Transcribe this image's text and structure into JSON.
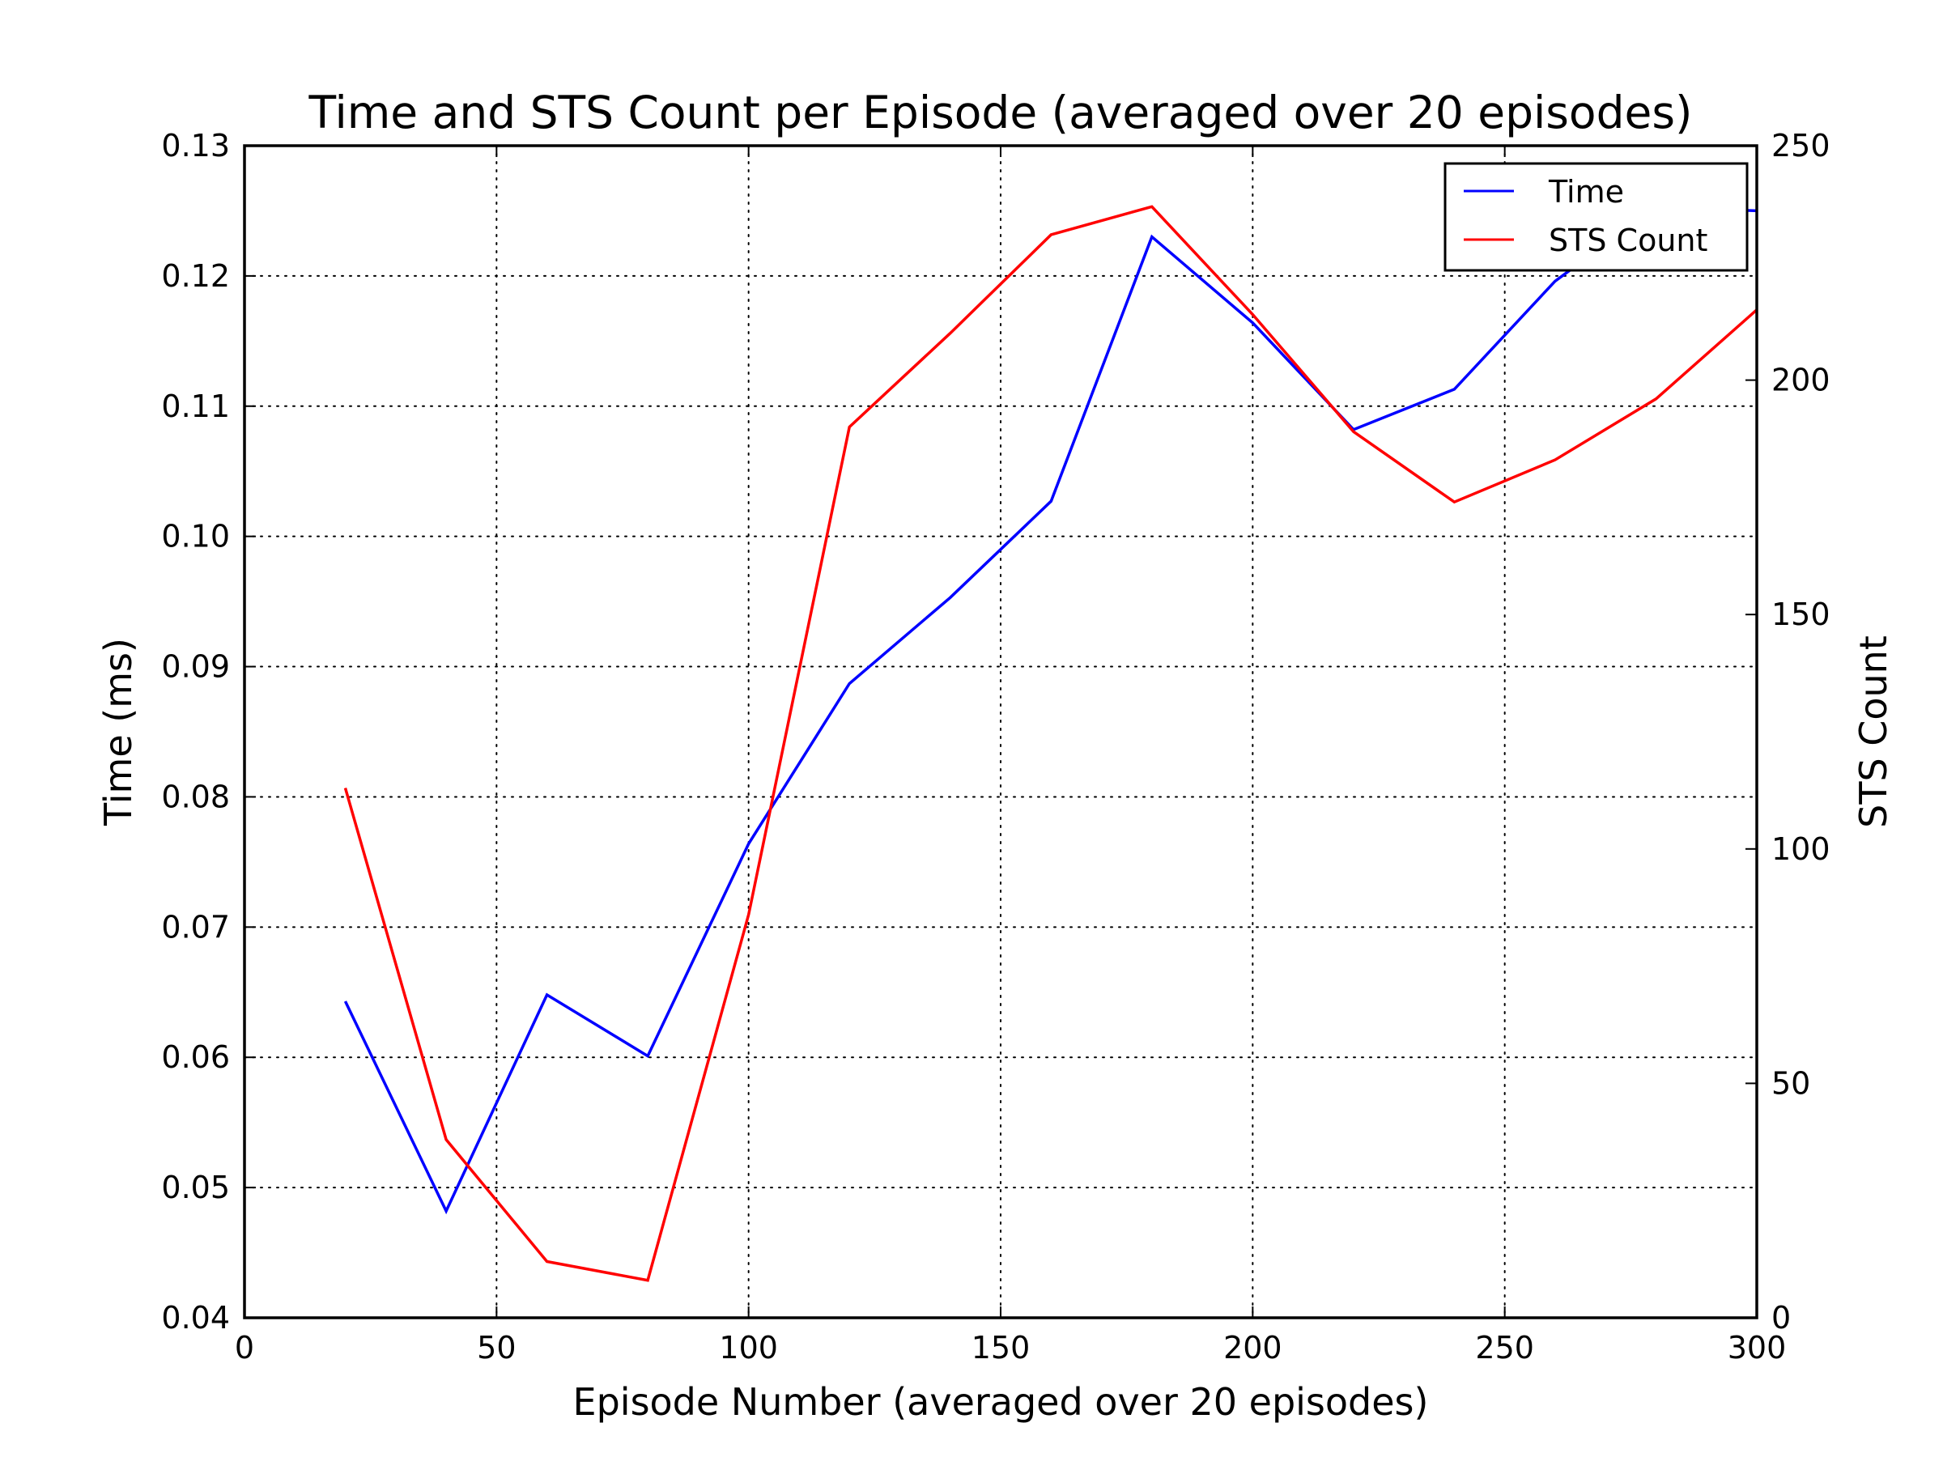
{
  "chart_data": {
    "type": "line",
    "title": "Time and STS Count per Episode (averaged over 20 episodes)",
    "xlabel": "Episode Number (averaged over 20 episodes)",
    "ylabel": "Time (ms)",
    "y2label": "STS Count",
    "xlim": [
      0,
      300
    ],
    "ylim": [
      0.04,
      0.13
    ],
    "y2lim": [
      0,
      250
    ],
    "xticks": [
      0,
      50,
      100,
      150,
      200,
      250,
      300
    ],
    "yticks": [
      "0.04",
      "0.05",
      "0.06",
      "0.07",
      "0.08",
      "0.09",
      "0.10",
      "0.11",
      "0.12",
      "0.13"
    ],
    "y2ticks": [
      0,
      50,
      100,
      150,
      200,
      250
    ],
    "grid": true,
    "legend_position": "top-right",
    "series": [
      {
        "name": "Time",
        "axis": "left",
        "color": "#0000ff",
        "x": [
          20,
          40,
          60,
          80,
          100,
          120,
          140,
          160,
          180,
          200,
          220,
          240,
          260,
          280,
          300
        ],
        "values": [
          0.0643,
          0.0482,
          0.0648,
          0.0601,
          0.0764,
          0.0887,
          0.0953,
          0.1027,
          0.123,
          0.1164,
          0.1082,
          0.1113,
          0.1196,
          0.1253,
          0.125
        ]
      },
      {
        "name": "STS Count",
        "axis": "right",
        "color": "#ff0000",
        "x": [
          20,
          40,
          60,
          80,
          100,
          120,
          140,
          160,
          180,
          200,
          220,
          240,
          260,
          280,
          300
        ],
        "values": [
          113,
          38,
          12,
          8,
          86,
          190,
          210,
          231,
          237,
          214,
          189,
          174,
          183,
          196,
          215
        ]
      }
    ]
  }
}
